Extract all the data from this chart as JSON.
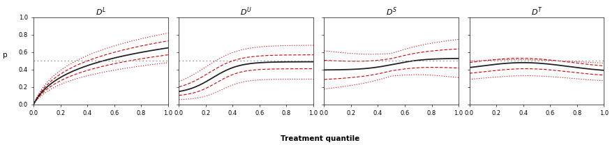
{
  "panels": [
    {
      "title_text": "$D^L$"
    },
    {
      "title_text": "$D^U$"
    },
    {
      "title_text": "$D^S$"
    },
    {
      "title_text": "$D^T$"
    }
  ],
  "xlabel": "Treatment quantile",
  "ylabel": "p",
  "line_color_mean": "#222222",
  "line_color_ci1": "#cc0000",
  "line_color_ci2": "#cc0000",
  "hline_color": "#888888",
  "background_color": "#ffffff",
  "tick_fontsize": 6,
  "label_fontsize": 7.5,
  "title_fontsize": 8
}
